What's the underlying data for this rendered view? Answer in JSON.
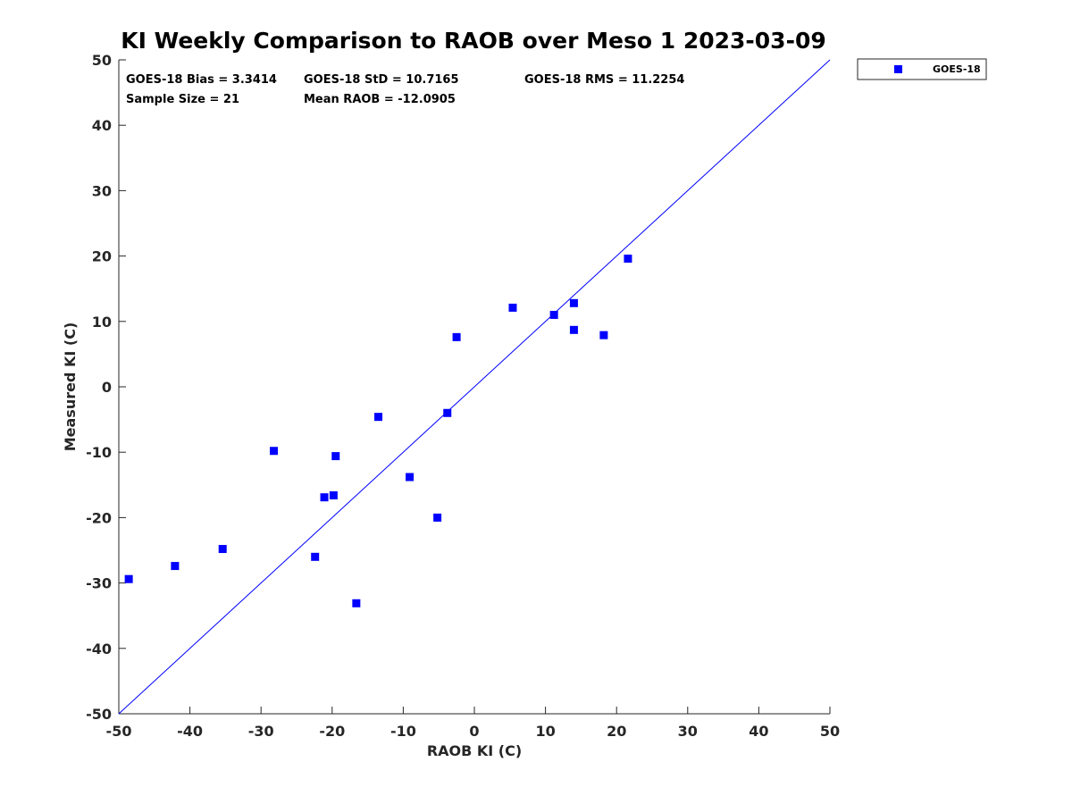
{
  "chart_data": {
    "type": "scatter",
    "title": "KI Weekly Comparison to RAOB over Meso 1 2023-03-09",
    "xlabel": "RAOB KI (C)",
    "ylabel": "Measured KI (C)",
    "xlim": [
      -50,
      50
    ],
    "ylim": [
      -50,
      50
    ],
    "xticks": [
      -50,
      -40,
      -30,
      -20,
      -10,
      0,
      10,
      20,
      30,
      40,
      50
    ],
    "yticks": [
      -50,
      -40,
      -30,
      -20,
      -10,
      0,
      10,
      20,
      30,
      40,
      50
    ],
    "grid": false,
    "legend_position": "top-right, outside plot",
    "reference_line": {
      "from": [
        -50,
        -50
      ],
      "to": [
        50,
        50
      ],
      "color": "#0000ff"
    },
    "stats": {
      "bias": "GOES-18 Bias = 3.3414",
      "std": "GOES-18 StD = 10.7165",
      "rms": "GOES-18 RMS = 11.2254",
      "sample_size": "Sample Size = 21",
      "mean_raob": "Mean RAOB = -12.0905"
    },
    "series": [
      {
        "name": "GOES-18",
        "color": "#0000ff",
        "marker": "square",
        "points": [
          [
            -48.6,
            -29.4
          ],
          [
            -42.1,
            -27.4
          ],
          [
            -35.4,
            -24.8
          ],
          [
            -28.2,
            -9.8
          ],
          [
            -22.4,
            -26.0
          ],
          [
            -21.1,
            -16.9
          ],
          [
            -19.8,
            -16.6
          ],
          [
            -19.5,
            -10.6
          ],
          [
            -16.6,
            -33.1
          ],
          [
            -13.5,
            -4.6
          ],
          [
            -9.1,
            -13.8
          ],
          [
            -5.2,
            -20.0
          ],
          [
            -3.8,
            -4.0
          ],
          [
            -2.5,
            7.6
          ],
          [
            5.4,
            12.1
          ],
          [
            11.2,
            11.0
          ],
          [
            14.0,
            12.8
          ],
          [
            14.0,
            8.7
          ],
          [
            18.2,
            7.9
          ],
          [
            21.6,
            19.6
          ]
        ]
      }
    ]
  }
}
